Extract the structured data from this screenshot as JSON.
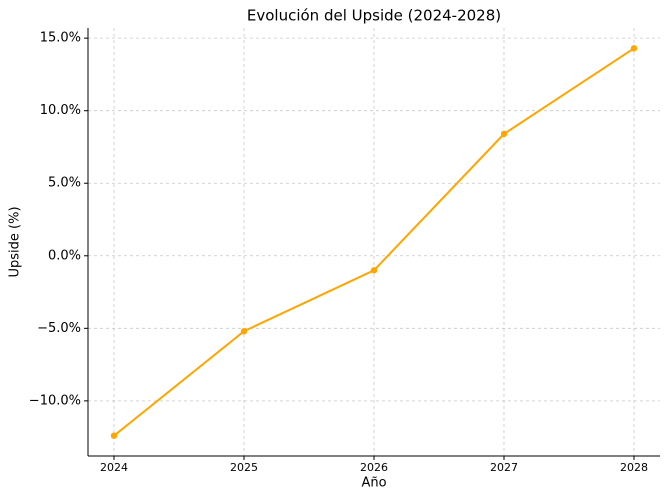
{
  "chart_data": {
    "type": "line",
    "title": "Evolución del Upside (2024-2028)",
    "x_label": "Año",
    "y_label": "Upside (%)",
    "x": [
      2024,
      2025,
      2026,
      2027,
      2028
    ],
    "values": [
      -12.4,
      -5.2,
      -1.0,
      8.4,
      14.3
    ],
    "color": "#ffa500",
    "xlim": [
      2023.8,
      2028.2
    ],
    "xticks": [
      2024,
      2025,
      2026,
      2027,
      2028
    ],
    "ylim": [
      -13.8,
      15.7
    ],
    "yticks": [
      {
        "value": -10,
        "label": "−10.0%"
      },
      {
        "value": -5,
        "label": "−5.0%"
      },
      {
        "value": 0,
        "label": "0.0%"
      },
      {
        "value": 5,
        "label": "5.0%"
      },
      {
        "value": 10,
        "label": "10.0%"
      },
      {
        "value": 15,
        "label": "15.0%"
      }
    ],
    "grid": true
  }
}
